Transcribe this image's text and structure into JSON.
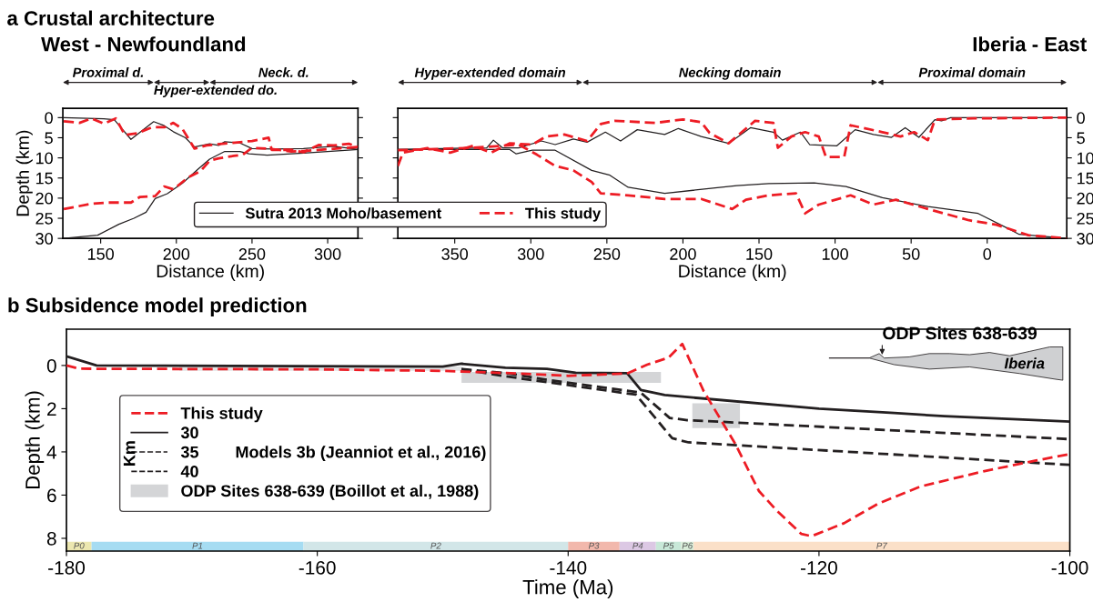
{
  "chart_data": [
    {
      "type": "line",
      "title": "a Crustal architecture",
      "subtitle": "West - Newfoundland",
      "xlabel": "Distance (km)",
      "ylabel": "Depth (km)",
      "xlim": [
        125,
        320
      ],
      "ylim": [
        30,
        -2.3
      ],
      "xticks": [
        150,
        200,
        250,
        300
      ],
      "yticks": [
        0,
        5,
        10,
        15,
        20,
        25,
        30
      ],
      "legend": "bottom right",
      "annotations": [
        "Proximal d.",
        "Hyper-extended do.",
        "Neck. d."
      ],
      "series": [
        {
          "name": "Sutra 2013 Moho/basement",
          "color": "#231f20",
          "line_style": "solid",
          "x": [
            125.6,
            152,
            159,
            170,
            185,
            192,
            198,
            206,
            212,
            222,
            228,
            232,
            242,
            250,
            264,
            284,
            304,
            320
          ],
          "values": [
            0,
            0.3,
            0.5,
            5.4,
            1.0,
            2.0,
            3.5,
            5.0,
            7.3,
            6.5,
            6.9,
            6.0,
            6.3,
            7.7,
            7.8,
            7.7,
            7.1,
            7.9
          ]
        },
        {
          "color": "#231f20",
          "line_style": "solid",
          "x": [
            125.6,
            148,
            162,
            172,
            180,
            186,
            194,
            204,
            214,
            222,
            232,
            242,
            248,
            260,
            284,
            320
          ],
          "values": [
            30,
            29.2,
            26.5,
            25,
            23.5,
            20.1,
            18.9,
            16.3,
            12.9,
            10.3,
            8.4,
            8.4,
            9.0,
            9.3,
            8.8,
            7.9
          ]
        },
        {
          "name": "This study",
          "color": "#ed1c24",
          "line_style": "dashed",
          "x": [
            125.6,
            136,
            144,
            152,
            160,
            166,
            174,
            184,
            192,
            198,
            204,
            212,
            220,
            236,
            250,
            261,
            263,
            276,
            284,
            294,
            304,
            314,
            320
          ],
          "values": [
            0.9,
            1.3,
            0.2,
            1.5,
            0.2,
            4.3,
            3.9,
            2.4,
            2.4,
            1.3,
            2.8,
            7.7,
            6.9,
            6.3,
            5.8,
            5.0,
            8.0,
            8.0,
            8.6,
            6.8,
            6.9,
            6.5,
            7.3
          ]
        },
        {
          "color": "#ed1c24",
          "line_style": "dashed",
          "x": [
            125.6,
            144,
            154,
            170,
            176,
            186,
            192,
            198,
            208,
            216,
            222,
            228,
            238,
            244,
            250,
            260,
            276,
            284,
            320
          ],
          "values": [
            22.7,
            21.4,
            21.1,
            21.1,
            19.7,
            19.5,
            17.1,
            17.8,
            14.8,
            13.3,
            10.7,
            10.1,
            9.5,
            9.2,
            7.5,
            7.7,
            8.4,
            8.3,
            7.3
          ]
        }
      ]
    },
    {
      "type": "line",
      "title": "Iberia - East",
      "xlabel": "Distance (km)",
      "xlim": [
        387.4,
        -52.3
      ],
      "ylim": [
        30,
        -2.3
      ],
      "xticks": [
        350,
        300,
        250,
        200,
        150,
        100,
        50,
        0
      ],
      "yticks": [
        0,
        5,
        10,
        15,
        20,
        25,
        30
      ],
      "annotations": [
        "Hyper-extended domain",
        "Necking domain",
        "Proximal domain"
      ],
      "series": [
        {
          "color": "#231f20",
          "line_style": "solid",
          "x": [
            387.4,
            329,
            324.6,
            318.6,
            308,
            293,
            284,
            272,
            263,
            251,
            241,
            230,
            212,
            203,
            188,
            170,
            155.6,
            140.6,
            134.6,
            122.7,
            116.7,
            98.8,
            86.8,
            74.8,
            62.9,
            53.9,
            44.9,
            34.4,
            30,
            24,
            -52.3
          ],
          "values": [
            7.9,
            7.5,
            5.6,
            7.5,
            7.5,
            5.8,
            6.7,
            5.3,
            6.1,
            3.6,
            5.8,
            3.0,
            4.2,
            2.7,
            4.7,
            6.4,
            2.5,
            3.6,
            5.6,
            3.6,
            6.7,
            7.0,
            3.0,
            4.2,
            4.9,
            2.5,
            4.9,
            0.5,
            0.8,
            0,
            0
          ]
        },
        {
          "color": "#231f20",
          "line_style": "solid",
          "x": [
            387.4,
            314,
            309.6,
            299,
            284,
            260,
            248,
            236,
            212,
            164.6,
            143.6,
            113.7,
            92.8,
            68.9,
            38.9,
            6,
            -15,
            -21,
            -52.3
          ],
          "values": [
            7.9,
            7.9,
            9.0,
            8.1,
            8.1,
            13.1,
            14.3,
            17.3,
            18.8,
            16.9,
            16.4,
            16.2,
            17.1,
            19.9,
            22.1,
            23.8,
            27.8,
            29,
            30
          ]
        },
        {
          "color": "#ed1c24",
          "line_style": "dashed",
          "x": [
            387.4,
            384,
            368,
            353,
            338,
            326,
            314,
            299,
            290,
            278,
            263,
            254,
            245,
            218,
            200,
            188,
            182.5,
            170,
            152.6,
            140.6,
            137.6,
            128.7,
            119.7,
            110.7,
            106,
            94,
            89.8,
            68.9,
            57,
            48,
            39,
            34.4,
            9,
            -52.3
          ],
          "values": [
            12.0,
            8.7,
            7.6,
            8.7,
            7.0,
            8.7,
            6.4,
            6.7,
            4.7,
            4.2,
            5.8,
            1.6,
            0.8,
            1.3,
            0.45,
            1.1,
            3.8,
            6.4,
            0.8,
            1.3,
            7.5,
            4.7,
            3.6,
            4.7,
            9.8,
            9.8,
            1.9,
            3.6,
            4.7,
            3.6,
            5.6,
            0.5,
            0.2,
            0
          ]
        },
        {
          "color": "#ed1c24",
          "line_style": "dashed",
          "x": [
            387.4,
            338,
            308,
            296,
            284,
            272,
            260,
            254,
            236,
            212,
            188,
            167.6,
            158.6,
            143.6,
            125.7,
            119.7,
            110.7,
            89.8,
            74.8,
            60,
            38.9,
            12,
            -6,
            -27,
            -52.3
          ],
          "values": [
            8.1,
            7.5,
            6.7,
            9.2,
            12.0,
            13.1,
            16.0,
            18.8,
            19.3,
            20.2,
            20.2,
            22.7,
            20.4,
            19.3,
            18.8,
            23.8,
            21.6,
            19.3,
            21.6,
            20.4,
            22.7,
            25.5,
            26.6,
            29.2,
            30
          ]
        }
      ]
    },
    {
      "type": "line",
      "title": "b Subsidence model prediction",
      "xlabel": "Time (Ma)",
      "ylabel": "Depth (km)",
      "xlim": [
        -180,
        -100
      ],
      "ylim": [
        8.59,
        -1.68
      ],
      "xticks": [
        -180,
        -160,
        -140,
        -120,
        -100
      ],
      "yticks": [
        0,
        2,
        4,
        6,
        8
      ],
      "legend": "left",
      "annotations": [
        "ODP Sites 638-639",
        "Iberia",
        "Km",
        "Models 3b (Jeanniot et al., 2016)"
      ],
      "bands": [
        {
          "axis": "x",
          "from": -180,
          "to": -178,
          "label": "P0",
          "color": "#ece7b0"
        },
        {
          "axis": "x",
          "from": -178,
          "to": -161.1,
          "label": "P1",
          "color": "#a6dcf2"
        },
        {
          "axis": "x",
          "from": -161.1,
          "to": -140,
          "label": "P2",
          "color": "#d2e6e8"
        },
        {
          "axis": "x",
          "from": -140,
          "to": -135.9,
          "label": "P3",
          "color": "#f2b8ac"
        },
        {
          "axis": "x",
          "from": -135.9,
          "to": -133,
          "label": "P4",
          "color": "#dcc8e4"
        },
        {
          "axis": "x",
          "from": -133,
          "to": -131,
          "label": "P5",
          "color": "#c8e8d8"
        },
        {
          "axis": "x",
          "from": -131,
          "to": -130,
          "label": "P6",
          "color": "#d8ecd8"
        },
        {
          "axis": "x",
          "from": -130,
          "to": -100,
          "label": "P7",
          "color": "#fbe0c8"
        }
      ],
      "series": [
        {
          "type": "area",
          "name": "ODP Sites 638-639 (Boillot et al., 1988)",
          "color": "#d4d5d7",
          "x": [
            -148.5,
            -132.6,
            -132.6,
            -148.5
          ],
          "values": [
            0.3,
            0.3,
            0.8,
            0.8
          ]
        },
        {
          "type": "area",
          "color": "#d4d5d7",
          "x": [
            -130.1,
            -126.3,
            -126.3,
            -130.1
          ],
          "values": [
            1.75,
            1.75,
            2.9,
            2.9
          ]
        },
        {
          "type": "area",
          "color": "#e3e4e5",
          "x": [
            -171,
            -148.5,
            -148.5,
            -171
          ],
          "values": [
            0.05,
            0.05,
            0.25,
            0.25
          ]
        },
        {
          "type": "line",
          "name": "30",
          "color": "#231f20",
          "line_style": "solid",
          "x": [
            -180,
            -177.6,
            -150,
            -148.5,
            -145,
            -141.7,
            -139.4,
            -135.3,
            -134.2,
            -132.3,
            -120,
            -114,
            -110,
            -100
          ],
          "values": [
            -0.42,
            0.0,
            0.05,
            -0.08,
            0.1,
            0.16,
            0.34,
            0.36,
            1.14,
            1.37,
            2.0,
            2.2,
            2.35,
            2.6
          ]
        },
        {
          "type": "line",
          "name": "35",
          "color": "#231f20",
          "line_style": "dashed",
          "x": [
            -148.5,
            -145,
            -141.7,
            -134.2,
            -131.9,
            -130.5,
            -100
          ],
          "values": [
            0.17,
            0.35,
            0.66,
            1.26,
            2.43,
            2.53,
            3.41
          ]
        },
        {
          "type": "line",
          "name": "40",
          "color": "#231f20",
          "line_style": "dashed",
          "x": [
            -148.5,
            -145,
            -141.7,
            -134.6,
            -131.7,
            -130.4,
            -100
          ],
          "values": [
            0.17,
            0.5,
            0.77,
            1.35,
            3.37,
            3.56,
            4.6
          ]
        },
        {
          "type": "line",
          "name": "This study",
          "color": "#ed1c24",
          "line_style": "dashed",
          "x": [
            -180,
            -179,
            -160,
            -150,
            -145,
            -140,
            -135.3,
            -133.7,
            -132.0,
            -130.9,
            -129.2,
            -126.7,
            -124.8,
            -123.4,
            -121.4,
            -120.6,
            -118.0,
            -115.3,
            -111.9,
            -106.9,
            -102.7,
            -100
          ],
          "values": [
            0.0,
            0.15,
            0.18,
            0.25,
            0.35,
            0.48,
            0.37,
            -0.04,
            -0.36,
            -1.0,
            1.18,
            3.6,
            5.8,
            6.7,
            7.8,
            7.9,
            7.3,
            6.4,
            5.6,
            4.9,
            4.4,
            4.1
          ]
        }
      ]
    }
  ]
}
